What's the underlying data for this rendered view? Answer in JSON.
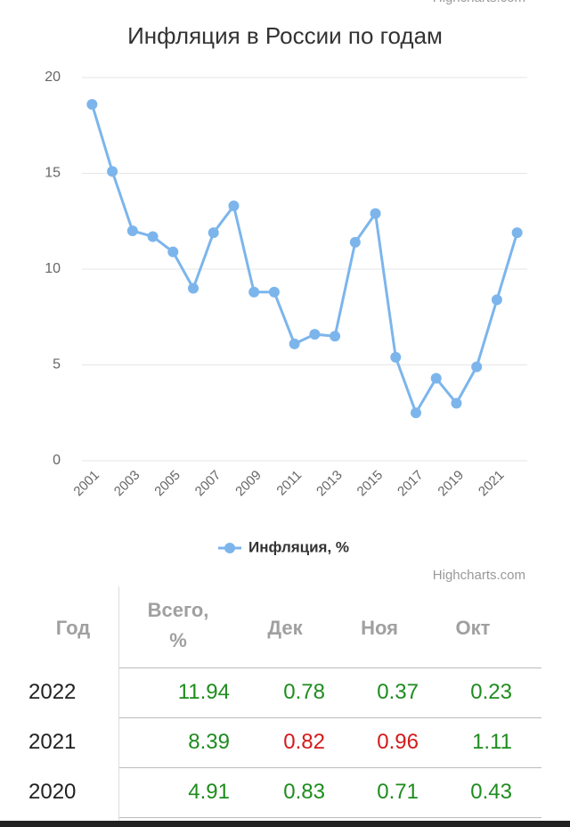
{
  "chart_data": {
    "type": "line",
    "title": "Инфляция в России по годам",
    "credits": "Highcharts.com",
    "categories": [
      "2001",
      null,
      "2003",
      null,
      "2005",
      null,
      "2007",
      null,
      "2009",
      null,
      "2011",
      null,
      "2013",
      null,
      "2015",
      null,
      "2017",
      null,
      "2019",
      null,
      "2021",
      null
    ],
    "series": [
      {
        "name": "Инфляция, %",
        "color": "#7cb5ec",
        "values": [
          18.6,
          15.1,
          12.0,
          11.7,
          10.9,
          9.0,
          11.9,
          13.3,
          8.8,
          8.8,
          6.1,
          6.6,
          6.5,
          11.4,
          12.9,
          5.4,
          2.5,
          4.3,
          3.0,
          4.9,
          8.4,
          11.9
        ]
      }
    ],
    "ylim": [
      0,
      20
    ],
    "yticks": [
      0,
      5,
      10,
      15,
      20
    ],
    "grid": true,
    "legend": "bottom"
  },
  "table": {
    "headers": [
      "Год",
      "Всего, %",
      "Дек",
      "Ноя",
      "Окт"
    ],
    "rows": [
      {
        "year": "2022",
        "values": [
          "11.94",
          "0.78",
          "0.37",
          "0.23"
        ],
        "colors": [
          "#1e8c1e",
          "#1e8c1e",
          "#1e8c1e",
          "#1e8c1e"
        ]
      },
      {
        "year": "2021",
        "values": [
          "8.39",
          "0.82",
          "0.96",
          "1.11"
        ],
        "colors": [
          "#1e8c1e",
          "#d41a1a",
          "#d41a1a",
          "#1e8c1e"
        ]
      },
      {
        "year": "2020",
        "values": [
          "4.91",
          "0.83",
          "0.71",
          "0.43"
        ],
        "colors": [
          "#1e8c1e",
          "#1e8c1e",
          "#1e8c1e",
          "#1e8c1e"
        ]
      }
    ]
  }
}
